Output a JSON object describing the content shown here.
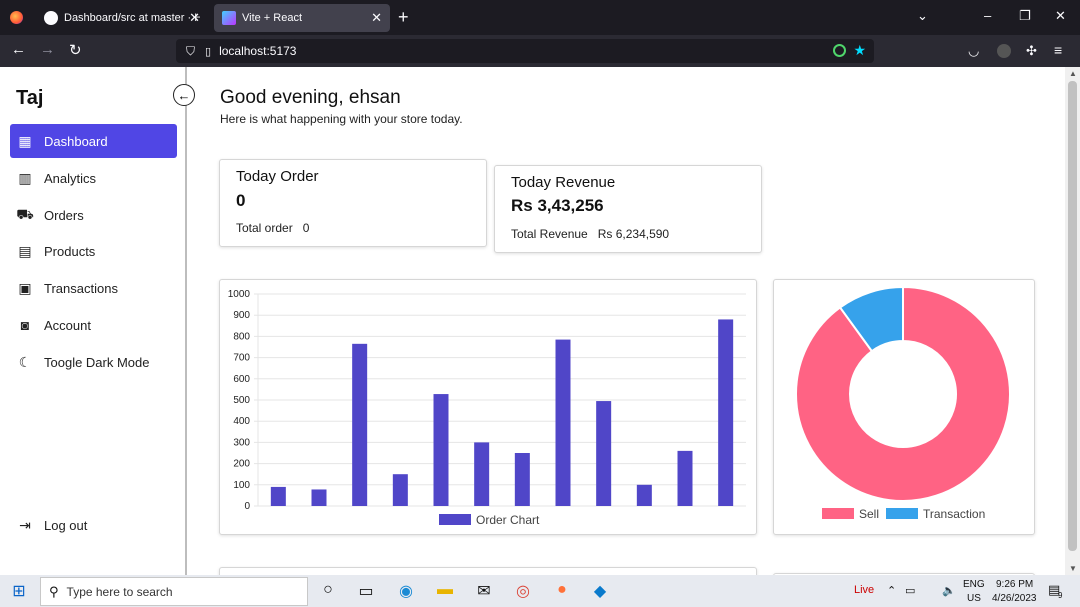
{
  "browser": {
    "tabs": [
      {
        "label": "Dashboard/src at master · Hayat",
        "close": "✕"
      },
      {
        "label": "Vite + React",
        "close": "✕"
      }
    ],
    "new_tab": "+",
    "url": "localhost:5173"
  },
  "sidebar": {
    "brand": "Taj",
    "items": [
      {
        "label": "Dashboard",
        "icon": "grid-icon"
      },
      {
        "label": "Analytics",
        "icon": "chart-icon"
      },
      {
        "label": "Orders",
        "icon": "cart-icon"
      },
      {
        "label": "Products",
        "icon": "box-icon"
      },
      {
        "label": "Transactions",
        "icon": "money-icon"
      },
      {
        "label": "Account",
        "icon": "user-icon"
      },
      {
        "label": "Toogle Dark Mode",
        "icon": "moon-icon"
      }
    ],
    "logout": "Log out"
  },
  "header": {
    "greeting": "Good evening, ehsan",
    "subtitle": "Here is what happening with your store today."
  },
  "cards": {
    "order": {
      "title": "Today Order",
      "value": "0",
      "row_label": "Total order",
      "row_value": "0"
    },
    "revenue": {
      "title": "Today Revenue",
      "value": "Rs 3,43,256",
      "row_label": "Total Revenue",
      "row_value": "Rs 6,234,590"
    }
  },
  "chart_data": [
    {
      "type": "bar",
      "values": [
        90,
        78,
        765,
        150,
        528,
        300,
        250,
        785,
        495,
        100,
        260,
        880
      ],
      "yticks": [
        "0",
        "100",
        "200",
        "300",
        "400",
        "500",
        "600",
        "700",
        "800",
        "900",
        "1000"
      ],
      "ylim": [
        0,
        1000
      ],
      "legend": "Order Chart",
      "color": "#5046c8",
      "grid": true,
      "legend_position": "bottom"
    },
    {
      "type": "pie",
      "variant": "doughnut",
      "labels": [
        "Sell",
        "Transaction"
      ],
      "values": [
        90,
        10
      ],
      "colors": [
        "#ff6384",
        "#36a2eb"
      ],
      "legend_position": "bottom"
    }
  ],
  "taskbar": {
    "search_placeholder": "Type here to search",
    "live": "Live",
    "lang": "ENG",
    "region": "US",
    "time": "9:26 PM",
    "date": "4/26/2023",
    "notifications": "9"
  }
}
